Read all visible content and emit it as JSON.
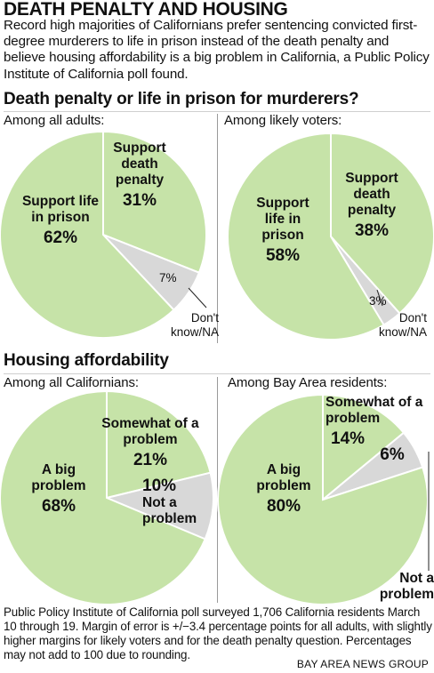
{
  "header": {
    "title": "DEATH PENALTY AND HOUSING",
    "intro": "Record high majorities of Californians prefer sentencing convicted first-degree murderers to life in prison instead of the death penalty and believe housing affordability is a big problem in California, a Public Policy Institute of California poll found."
  },
  "colors": {
    "green": "#c6e3a8",
    "gray": "#d8d8d8",
    "stroke": "#ffffff",
    "divider": "#9a9a9a"
  },
  "sections": {
    "death_penalty_title": "Death penalty or life in prison for murderers?",
    "housing_title": "Housing affordability"
  },
  "chart_data": [
    {
      "type": "pie",
      "title": "Among all adults:",
      "slices": [
        {
          "label": "Support life in prison",
          "value": 62,
          "display": "62%",
          "color": "#c6e3a8"
        },
        {
          "label": "Support death penalty",
          "value": 31,
          "display": "31%",
          "color": "#c6e3a8"
        },
        {
          "label": "Don't know/NA",
          "value": 7,
          "display": "7%",
          "color": "#d8d8d8"
        }
      ]
    },
    {
      "type": "pie",
      "title": "Among likely voters:",
      "slices": [
        {
          "label": "Support life in prison",
          "value": 58,
          "display": "58%",
          "color": "#c6e3a8"
        },
        {
          "label": "Support death penalty",
          "value": 38,
          "display": "38%",
          "color": "#c6e3a8"
        },
        {
          "label": "Don't know/NA",
          "value": 3,
          "display": "3%",
          "color": "#d8d8d8"
        }
      ]
    },
    {
      "type": "pie",
      "title": "Among all Californians:",
      "slices": [
        {
          "label": "A big problem",
          "value": 68,
          "display": "68%",
          "color": "#c6e3a8"
        },
        {
          "label": "Somewhat of a problem",
          "value": 21,
          "display": "21%",
          "color": "#c6e3a8"
        },
        {
          "label": "Not a problem",
          "value": 10,
          "display": "10%",
          "color": "#d8d8d8"
        }
      ]
    },
    {
      "type": "pie",
      "title": "Among Bay Area residents:",
      "slices": [
        {
          "label": "A big problem",
          "value": 80,
          "display": "80%",
          "color": "#c6e3a8"
        },
        {
          "label": "Somewhat of a problem",
          "value": 14,
          "display": "14%",
          "color": "#c6e3a8"
        },
        {
          "label": "Not a problem",
          "value": 6,
          "display": "6%",
          "color": "#d8d8d8"
        }
      ]
    }
  ],
  "pie_text": {
    "c1": {
      "main": "Support life in prison",
      "second": "Support death penalty",
      "third": "Don't know/NA"
    },
    "c2": {
      "main": "Support life in prison",
      "second": "Support death penalty",
      "third": "Don't know/NA"
    },
    "c3": {
      "main": "A big problem",
      "second": "Somewhat of a problem",
      "third": "Not a problem"
    },
    "c4": {
      "main": "A big problem",
      "second": "Somewhat of a problem",
      "third": "Not a problem"
    }
  },
  "footer": {
    "note": "Public Policy Institute of California poll surveyed 1,706 California residents March 10 through 19. Margin of error is +/−3.4 percentage points for all adults, with slightly higher margins for likely voters and for the death penalty question. Percentages may not add to 100 due to rounding.",
    "source": "BAY AREA NEWS GROUP"
  }
}
